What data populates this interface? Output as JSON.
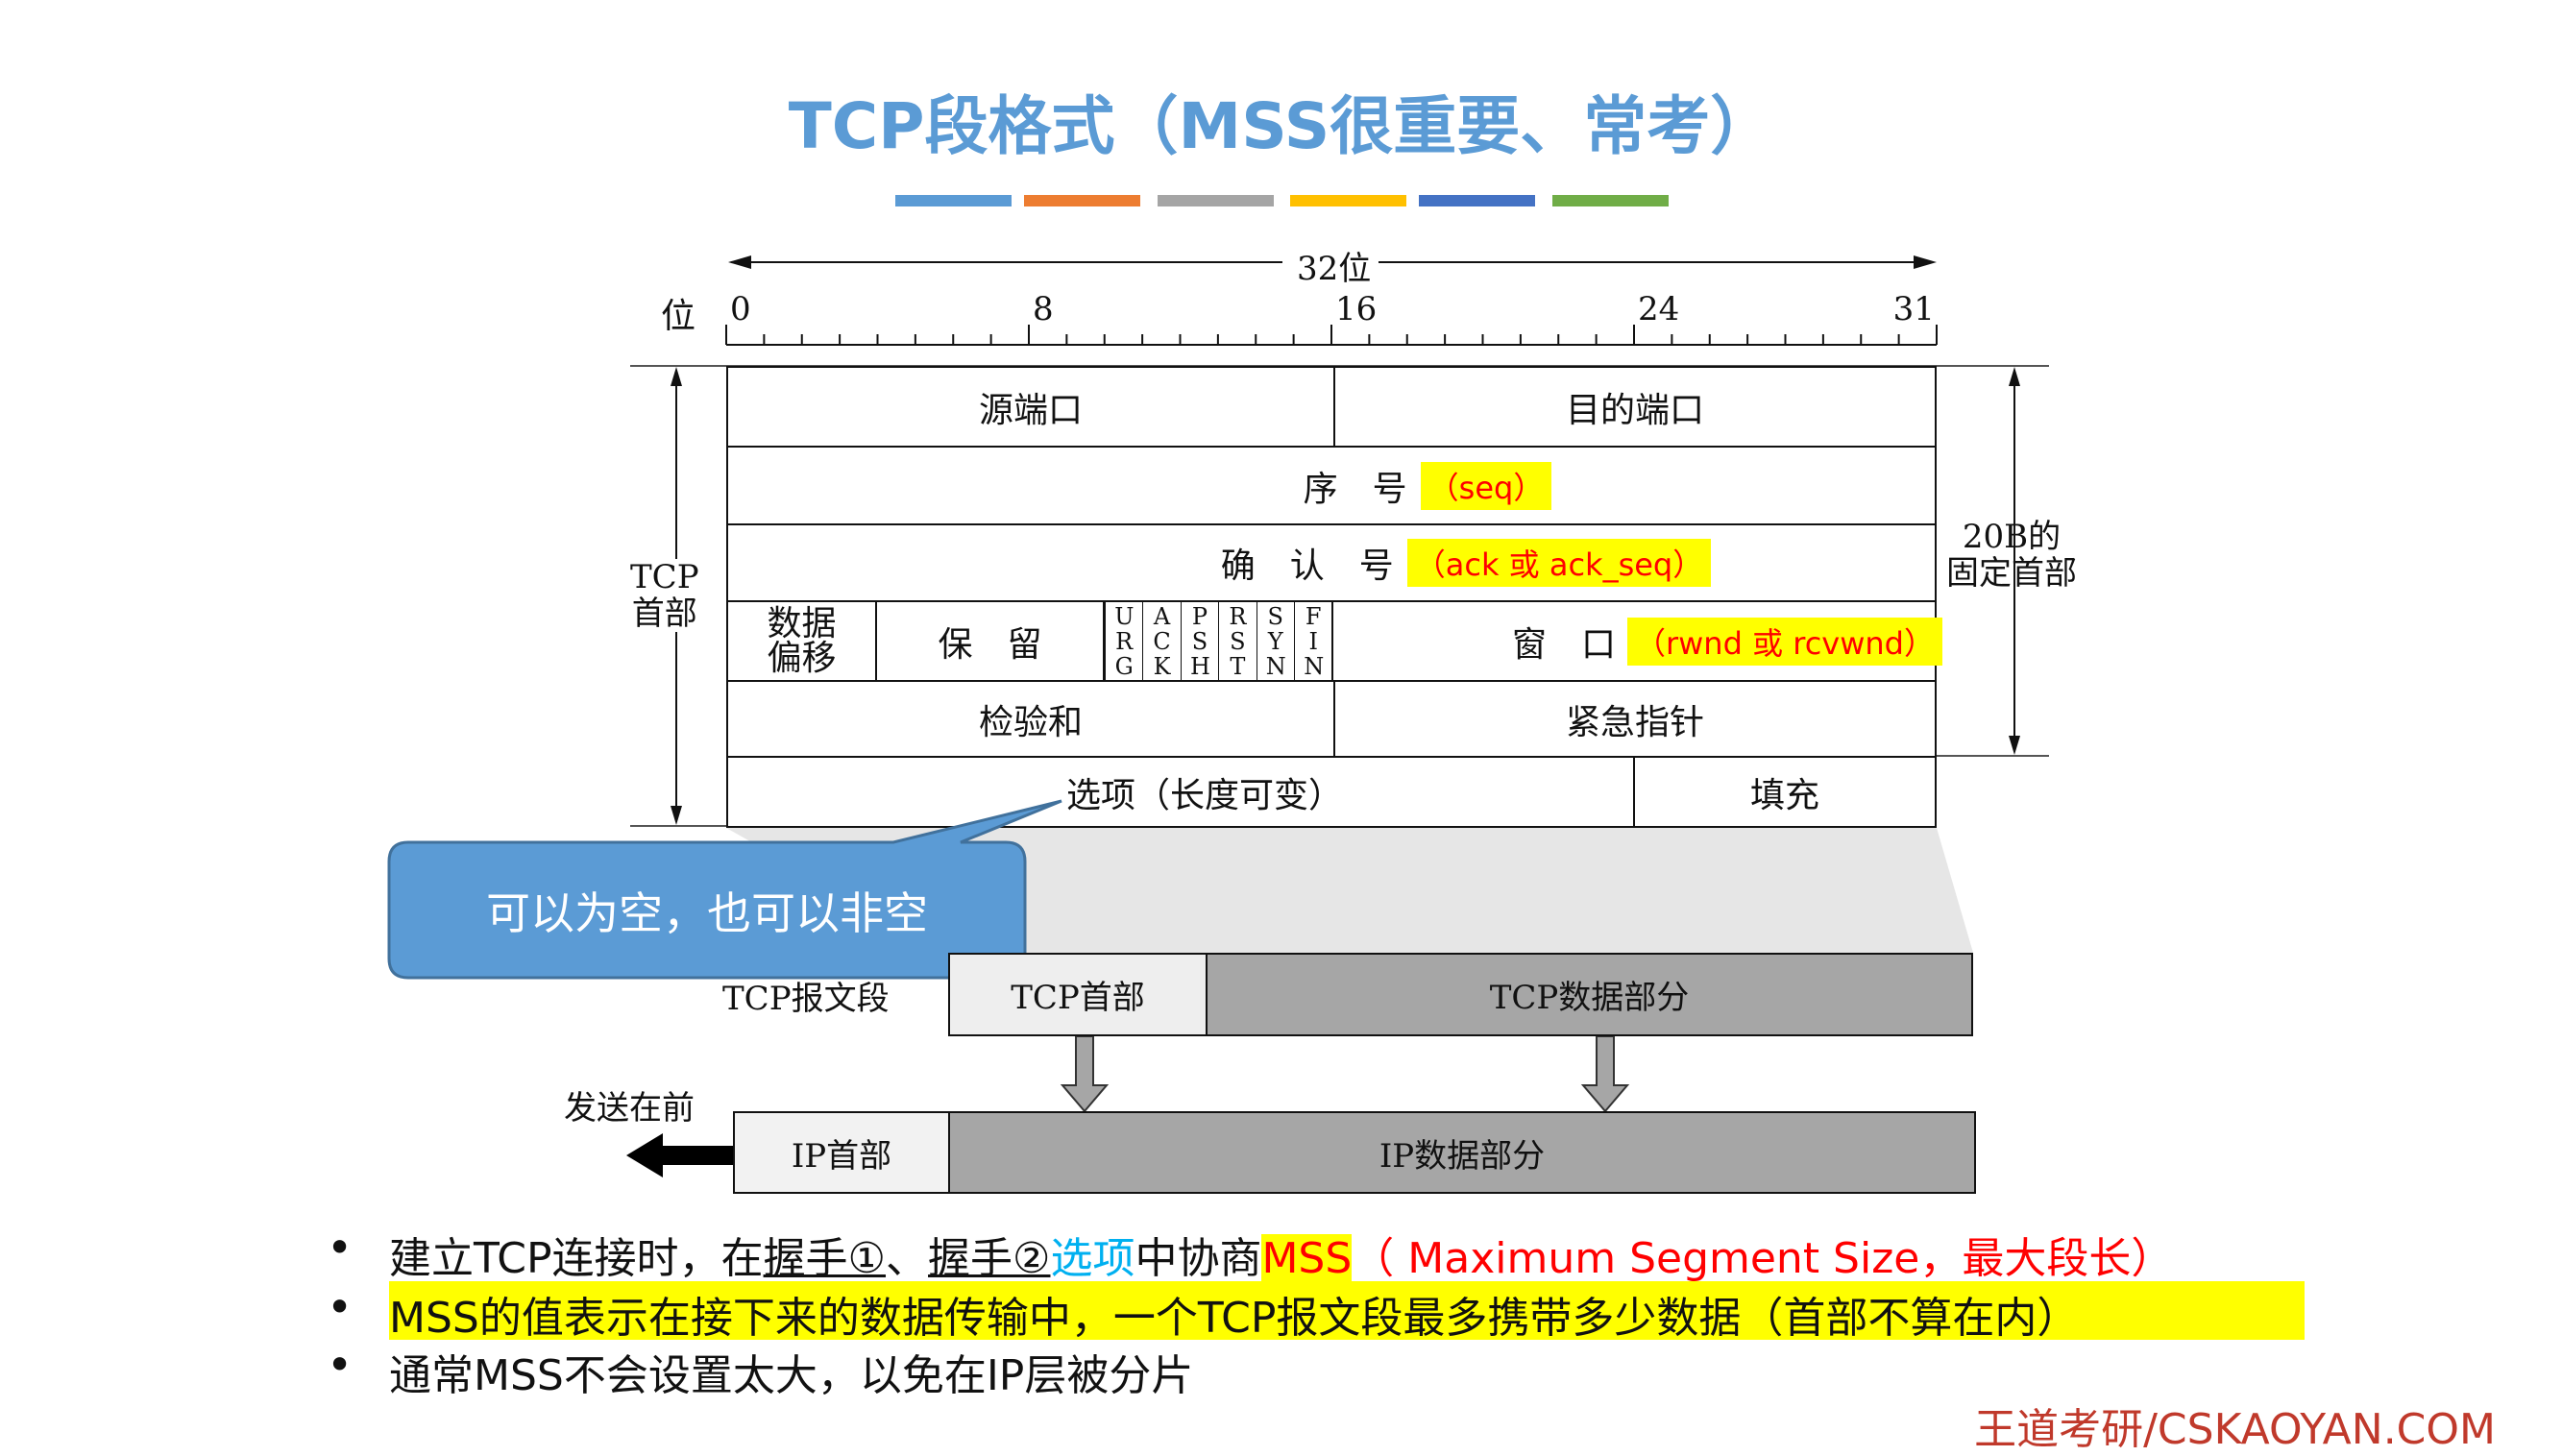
{
  "title": "TCP段格式（MSS很重要、常考）",
  "color_bars": [
    "#5B9BD5",
    "#ED7D31",
    "#A5A5A5",
    "#FFC000",
    "#4472C4",
    "#70AD47"
  ],
  "ruler": {
    "width_label": "32位",
    "bit_label": "位",
    "bits": [
      "0",
      "8",
      "16",
      "24",
      "31"
    ]
  },
  "header": {
    "left_label": "TCP\n首部",
    "right_label": "20B的\n固定首部",
    "src_port": "源端口",
    "dst_port": "目的端口",
    "seq": "序　号",
    "seq_note": "（seq）",
    "ack": "确　认　号",
    "ack_note": "（ack 或 ack_seq）",
    "offset": "数据\n偏移",
    "reserved": "保　留",
    "flags": [
      "URG",
      "ACK",
      "PSH",
      "RST",
      "SYN",
      "FIN"
    ],
    "window": "窗　口",
    "window_note": "（rwnd 或 rcvwnd）",
    "checksum": "检验和",
    "urgent": "紧急指针",
    "options": "选项（长度可变）",
    "padding": "填充"
  },
  "callout": "可以为空，也可以非空",
  "segment": {
    "label": "TCP报文段",
    "tcp_header": "TCP首部",
    "tcp_data": "TCP数据部分",
    "send_first": "发送在前",
    "ip_header": "IP首部",
    "ip_data": "IP数据部分"
  },
  "bullets": {
    "b1": {
      "p1": "建立TCP连接时，在",
      "u1": "握手①",
      "p2": "、",
      "u2": "握手②",
      "opt": "选项",
      "p3": "中协商",
      "mss": "MSS",
      "rest": "（ Maximum Segment Size，最大段长）"
    },
    "b2": "MSS的值表示在接下来的数据传输中，一个TCP报文段最多携带多少数据（首部不算在内）",
    "b3": "通常MSS不会设置太大，以免在IP层被分片"
  },
  "footer": "王道考研/CSKAOYAN.COM"
}
